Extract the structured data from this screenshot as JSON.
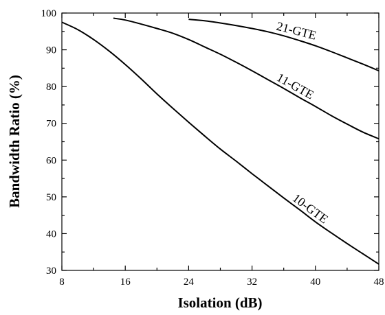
{
  "chart_data": {
    "type": "line",
    "title": "",
    "xlabel": "Isolation (dB)",
    "ylabel": "Bandwidth Ratio (%)",
    "xlim": [
      8,
      48
    ],
    "ylim": [
      30,
      100
    ],
    "xticks": [
      8,
      16,
      24,
      32,
      40,
      48
    ],
    "yticks": [
      30,
      40,
      50,
      60,
      70,
      80,
      90,
      100
    ],
    "minor_ticks": true,
    "grid": false,
    "legend": "none",
    "line_color": "#000000",
    "series": [
      {
        "name": "21-GTE",
        "x": [
          24,
          26,
          28,
          30,
          32,
          34,
          36,
          38,
          40,
          42,
          44,
          46,
          48
        ],
        "y": [
          98.3,
          97.9,
          97.3,
          96.6,
          95.8,
          94.9,
          93.8,
          92.5,
          91.1,
          89.5,
          87.8,
          86.1,
          84.3
        ]
      },
      {
        "name": "11-GTE",
        "x": [
          14.5,
          16,
          18,
          20,
          22,
          24,
          26,
          28,
          30,
          32,
          34,
          36,
          38,
          40,
          42,
          44,
          46,
          48
        ],
        "y": [
          98.6,
          98.1,
          97.0,
          95.8,
          94.5,
          92.8,
          90.8,
          88.8,
          86.6,
          84.3,
          81.9,
          79.5,
          77.0,
          74.6,
          72.1,
          69.8,
          67.6,
          65.8
        ]
      },
      {
        "name": "10-GTE",
        "x": [
          8,
          10,
          12,
          14,
          16,
          18,
          20,
          22,
          24,
          26,
          28,
          30,
          32,
          34,
          36,
          38,
          40,
          42,
          44,
          46,
          48
        ],
        "y": [
          97.5,
          95.5,
          92.8,
          89.6,
          86.0,
          82.1,
          78.0,
          74.1,
          70.3,
          66.6,
          63.0,
          59.7,
          56.3,
          53.0,
          49.7,
          46.5,
          43.2,
          40.2,
          37.3,
          34.5,
          31.7
        ]
      }
    ]
  }
}
